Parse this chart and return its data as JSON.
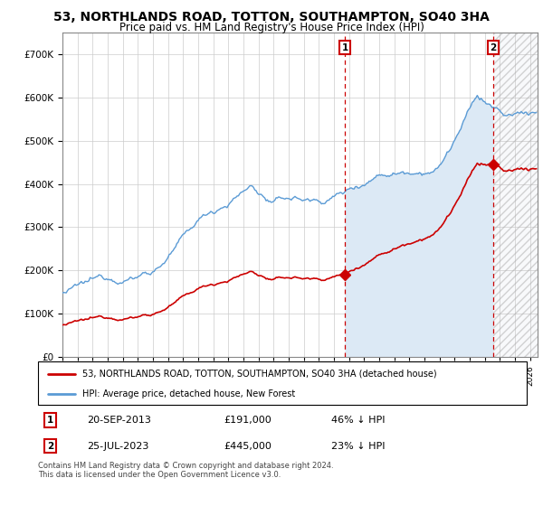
{
  "title": "53, NORTHLANDS ROAD, TOTTON, SOUTHAMPTON, SO40 3HA",
  "subtitle": "Price paid vs. HM Land Registry's House Price Index (HPI)",
  "legend_property": "53, NORTHLANDS ROAD, TOTTON, SOUTHAMPTON, SO40 3HA (detached house)",
  "legend_hpi": "HPI: Average price, detached house, New Forest",
  "annotation1_label": "1",
  "annotation1_date": "20-SEP-2013",
  "annotation1_price": "£191,000",
  "annotation1_pct": "46% ↓ HPI",
  "annotation2_label": "2",
  "annotation2_date": "25-JUL-2023",
  "annotation2_price": "£445,000",
  "annotation2_pct": "23% ↓ HPI",
  "footer": "Contains HM Land Registry data © Crown copyright and database right 2024.\nThis data is licensed under the Open Government Licence v3.0.",
  "sale1_year": 2013.72,
  "sale1_price": 191000,
  "sale2_year": 2023.56,
  "sale2_price": 445000,
  "hpi_color": "#5b9bd5",
  "property_color": "#cc0000",
  "vline_color": "#cc0000",
  "ylim_max": 750000,
  "ylim_min": 0,
  "xmin": 1995,
  "xmax": 2026.5
}
